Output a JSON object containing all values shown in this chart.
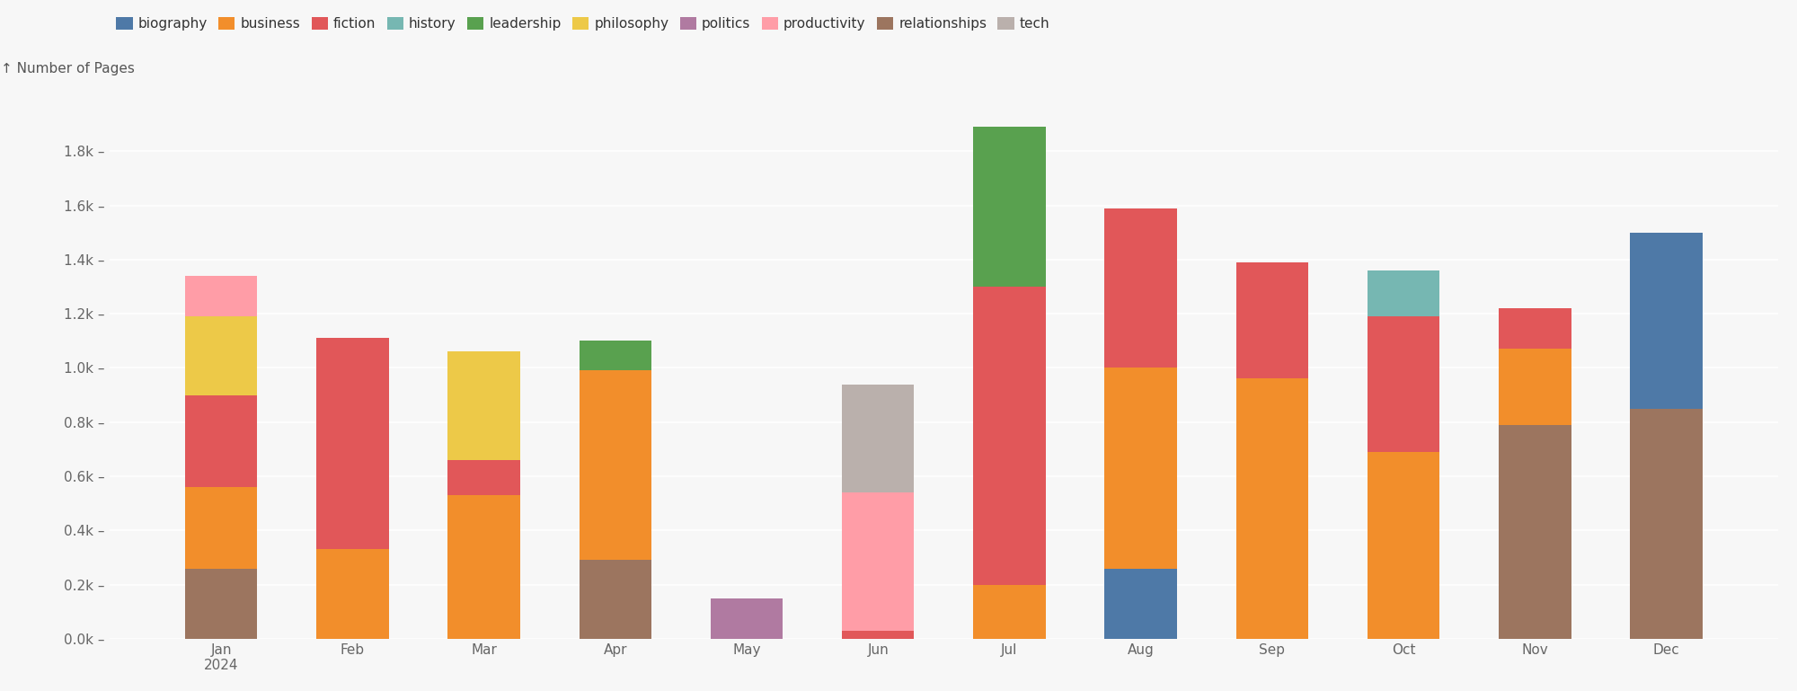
{
  "months": [
    "Jan\n2024",
    "Feb",
    "Mar",
    "Apr",
    "May",
    "Jun",
    "Jul",
    "Aug",
    "Sep",
    "Oct",
    "Nov",
    "Dec"
  ],
  "genres": [
    "relationships",
    "biography",
    "business",
    "fiction",
    "history",
    "leadership",
    "philosophy",
    "politics",
    "productivity",
    "tech"
  ],
  "colors": {
    "biography": "#4e79a7",
    "business": "#f28e2b",
    "fiction": "#e15759",
    "history": "#76b7b2",
    "leadership": "#59a14f",
    "philosophy": "#edc948",
    "politics": "#b07aa1",
    "productivity": "#ff9da7",
    "relationships": "#9c755f",
    "tech": "#bab0ac"
  },
  "legend_order": [
    "biography",
    "business",
    "fiction",
    "history",
    "leadership",
    "philosophy",
    "politics",
    "productivity",
    "relationships",
    "tech"
  ],
  "data": {
    "biography": [
      0,
      0,
      0,
      0,
      0,
      0,
      0,
      260,
      0,
      0,
      0,
      650
    ],
    "business": [
      300,
      330,
      530,
      700,
      0,
      0,
      200,
      740,
      960,
      690,
      280,
      0
    ],
    "fiction": [
      340,
      780,
      130,
      0,
      0,
      30,
      1100,
      590,
      430,
      500,
      150,
      0
    ],
    "history": [
      0,
      0,
      0,
      0,
      0,
      0,
      0,
      0,
      0,
      170,
      0,
      0
    ],
    "leadership": [
      0,
      0,
      0,
      110,
      0,
      0,
      590,
      0,
      0,
      0,
      0,
      0
    ],
    "philosophy": [
      290,
      0,
      400,
      0,
      0,
      0,
      0,
      0,
      0,
      0,
      0,
      0
    ],
    "politics": [
      0,
      0,
      0,
      0,
      150,
      0,
      0,
      0,
      0,
      0,
      0,
      0
    ],
    "productivity": [
      150,
      0,
      0,
      0,
      0,
      510,
      0,
      0,
      0,
      0,
      0,
      0
    ],
    "relationships": [
      260,
      0,
      0,
      290,
      0,
      0,
      0,
      0,
      0,
      0,
      790,
      850
    ],
    "tech": [
      0,
      0,
      0,
      0,
      0,
      400,
      0,
      0,
      0,
      0,
      0,
      0
    ]
  },
  "ylabel": "↑ Number of Pages",
  "ylim": [
    0,
    2000
  ],
  "yticks": [
    0,
    200,
    400,
    600,
    800,
    1000,
    1200,
    1400,
    1600,
    1800
  ],
  "ytick_labels": [
    "0.0k –",
    "0.2k –",
    "0.4k –",
    "0.6k –",
    "0.8k –",
    "1.0k –",
    "1.2k –",
    "1.4k –",
    "1.6k –",
    "1.8k –"
  ],
  "background_color": "#f7f7f7",
  "bar_width": 0.55,
  "label_fontsize": 11,
  "tick_fontsize": 11,
  "legend_fontsize": 11
}
